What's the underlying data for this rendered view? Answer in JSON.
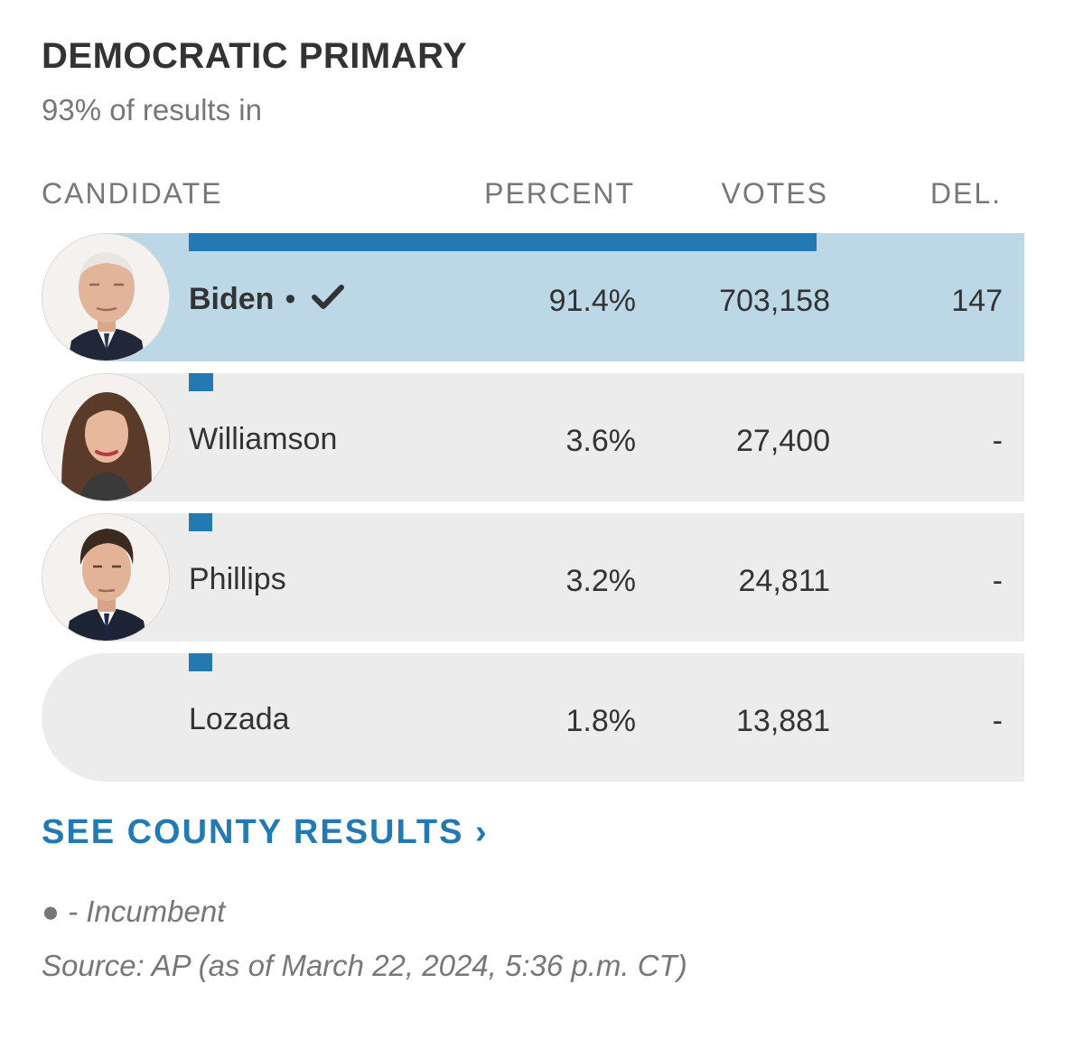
{
  "title": "DEMOCRATIC PRIMARY",
  "subtitle": "93% of results in",
  "columns": {
    "candidate": "CANDIDATE",
    "percent": "PERCENT",
    "votes": "VOTES",
    "delegates": "DEL."
  },
  "candidates": [
    {
      "name": "Biden",
      "percent": "91.4%",
      "votes": "703,158",
      "delegates": "147",
      "incumbent_marker": "•",
      "winner": true,
      "share": 0.914
    },
    {
      "name": "Williamson",
      "percent": "3.6%",
      "votes": "27,400",
      "delegates": "-",
      "winner": false,
      "share": 0.036
    },
    {
      "name": "Phillips",
      "percent": "3.2%",
      "votes": "24,811",
      "delegates": "-",
      "winner": false,
      "share": 0.032
    },
    {
      "name": "Lozada",
      "percent": "1.8%",
      "votes": "13,881",
      "delegates": "-",
      "winner": false,
      "share": 0.018
    }
  ],
  "county_link": "SEE COUNTY RESULTS ›",
  "legend_incumbent": "● - Incumbent",
  "source": "Source: AP (as of March 22, 2024, 5:36 p.m. CT)",
  "colors": {
    "accent": "#2379b2",
    "winner_row": "#bcd8e7",
    "row": "#ececec"
  },
  "icons": {
    "winner": "check-icon",
    "portrait": "candidate-photo"
  }
}
